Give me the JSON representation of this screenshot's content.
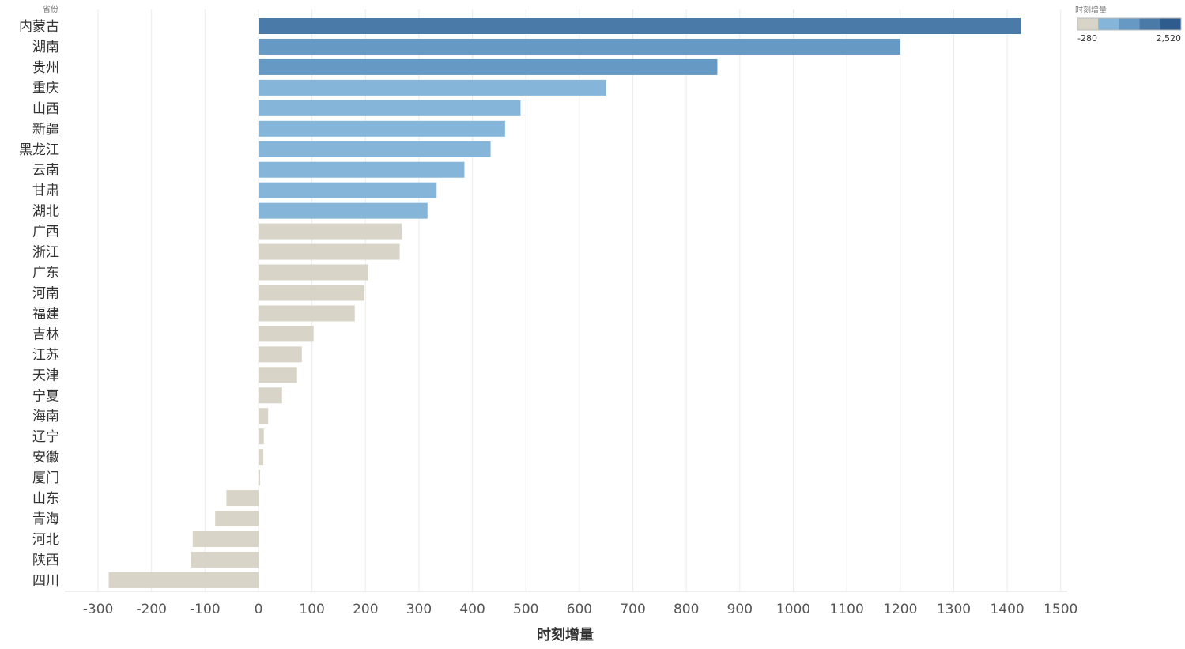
{
  "chart_data": {
    "type": "bar",
    "orientation": "horizontal",
    "row_header": "省份",
    "xlabel": "时刻增量",
    "xlim": [
      -350,
      1525
    ],
    "xticks": [
      -300,
      -200,
      -100,
      0,
      100,
      200,
      300,
      400,
      500,
      600,
      700,
      800,
      900,
      1000,
      1100,
      1200,
      1300,
      1400,
      1500
    ],
    "grid": true,
    "categories": [
      "内蒙古",
      "湖南",
      "贵州",
      "重庆",
      "山西",
      "新疆",
      "黑龙江",
      "云南",
      "甘肃",
      "湖北",
      "广西",
      "浙江",
      "广东",
      "河南",
      "福建",
      "吉林",
      "江苏",
      "天津",
      "宁夏",
      "海南",
      "辽宁",
      "安徽",
      "厦门",
      "山东",
      "青海",
      "河北",
      "陕西",
      "四川"
    ],
    "values": [
      1425,
      1200,
      858,
      650,
      490,
      461,
      434,
      385,
      333,
      316,
      268,
      264,
      205,
      198,
      180,
      103,
      81,
      72,
      44,
      18,
      10,
      9,
      3,
      -60,
      -81,
      -123,
      -126,
      -280
    ],
    "color_legend": {
      "title": "时刻增量",
      "min_label": "-280",
      "max_label": "2,520",
      "steps": [
        "#d9d4c8",
        "#85b6da",
        "#6699c4",
        "#4a7aa8",
        "#2e5c8e"
      ]
    },
    "bar_color_rule": [
      {
        "min": 1300,
        "color": "#4a7aa8"
      },
      {
        "min": 700,
        "color": "#6699c4"
      },
      {
        "min": 300,
        "color": "#85b6da"
      },
      {
        "min": -1000,
        "color": "#d9d4c8"
      }
    ]
  }
}
